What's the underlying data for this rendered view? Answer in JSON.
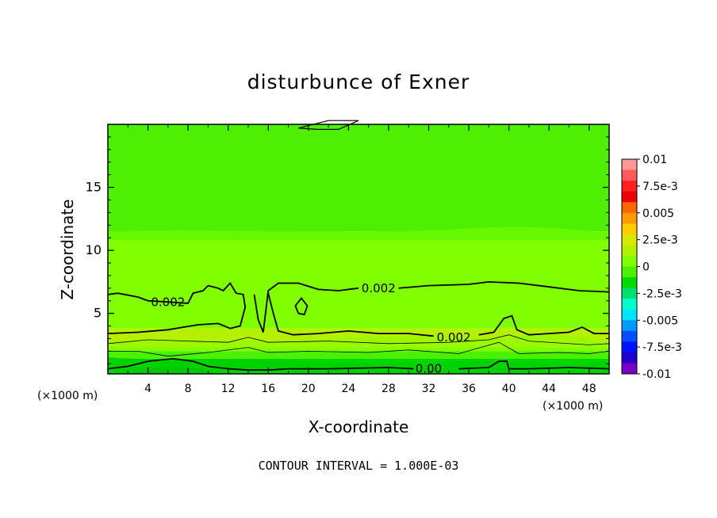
{
  "chart_data": {
    "type": "contour",
    "title": "disturbunce of Exner",
    "xlabel": "X-coordinate",
    "ylabel": "Z-coordinate",
    "x_unit_note": "(×1000 m)",
    "x_unit_note_right": "(×1000 m)",
    "footnote": "CONTOUR INTERVAL = 1.000E-03",
    "xlim": [
      0,
      50
    ],
    "ylim": [
      0.2,
      20
    ],
    "x_ticks": [
      4,
      8,
      12,
      16,
      20,
      24,
      28,
      32,
      36,
      40,
      44,
      48
    ],
    "x_tick_labels": [
      "4",
      "8",
      "12",
      "16",
      "20",
      "24",
      "28",
      "32",
      "36",
      "40",
      "44",
      "48"
    ],
    "y_ticks": [
      5,
      10,
      15
    ],
    "y_tick_labels": [
      "5",
      "10",
      "15"
    ],
    "contour_interval": 0.001,
    "contour_labels": [
      {
        "text": "0.002",
        "x": 6,
        "z": 5.9
      },
      {
        "text": "0.002",
        "x": 27,
        "z": 7.0
      },
      {
        "text": "0.002",
        "x": 34.5,
        "z": 3.1
      },
      {
        "text": "0.00",
        "x": 32,
        "z": 0.6
      }
    ],
    "colorbar": {
      "labels": [
        "0.01",
        "7.5e-3",
        "0.005",
        "2.5e-3",
        "0",
        "-2.5e-3",
        "-0.005",
        "-7.5e-3",
        "-0.01"
      ],
      "levels": [
        0.01,
        0.0075,
        0.005,
        0.0025,
        0,
        -0.0025,
        -0.005,
        -0.0075,
        -0.01
      ],
      "colors": [
        "#ff9999",
        "#ff5a5a",
        "#ff2020",
        "#ee0000",
        "#ff6600",
        "#ff9900",
        "#ffcc00",
        "#d8e800",
        "#b4f000",
        "#80ff00",
        "#4cf000",
        "#00d900",
        "#00e070",
        "#00ffcc",
        "#00e5ff",
        "#0099ff",
        "#0050ff",
        "#0010ff",
        "#2000cc",
        "#7a00c8"
      ]
    },
    "field_bands": [
      {
        "z_from": 11.5,
        "z_to": 20,
        "color": "#4cf000"
      },
      {
        "z_from": 3.8,
        "z_to": 11.5,
        "color": "#80ff00"
      },
      {
        "z_from": 2.7,
        "z_to": 3.8,
        "color": "#b4f000"
      },
      {
        "z_from": 2.0,
        "z_to": 2.7,
        "color": "#80ff00"
      },
      {
        "z_from": 1.4,
        "z_to": 2.0,
        "color": "#4cf000"
      },
      {
        "z_from": 0.8,
        "z_to": 1.4,
        "color": "#00d900"
      },
      {
        "z_from": 0.2,
        "z_to": 0.8,
        "color": "#00d900"
      }
    ]
  }
}
